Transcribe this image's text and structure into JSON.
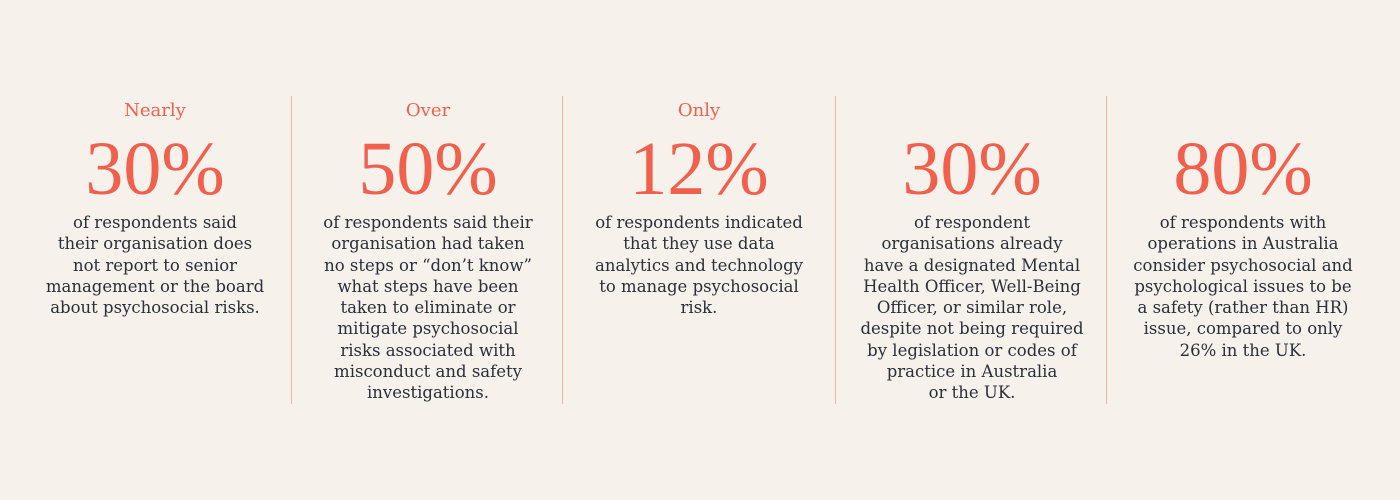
{
  "stats": [
    {
      "prefix": "Nearly",
      "figure": "30%",
      "lines": [
        "of respondents said",
        "their organisation does",
        "not report to senior",
        "management or the board",
        "about psychosocial risks."
      ]
    },
    {
      "prefix": "Over",
      "figure": "50%",
      "lines": [
        "of respondents said their",
        "organisation had taken",
        "no steps or “don’t know”",
        "what steps have been",
        "taken to eliminate or",
        "mitigate psychosocial",
        "risks associated with",
        "misconduct and safety",
        "investigations."
      ]
    },
    {
      "prefix": "Only",
      "figure": "12%",
      "lines": [
        "of respondents indicated",
        "that they use data",
        "analytics and technology",
        "to manage psychosocial",
        "risk."
      ]
    },
    {
      "figure": "30%",
      "lines": [
        "of respondent",
        "organisations already",
        "have a designated Mental",
        "Health Officer, Well-Being",
        "Officer, or similar role,",
        "despite not being required",
        "by legislation or codes of",
        "practice in Australia",
        "or the UK."
      ]
    },
    {
      "figure": "80%",
      "lines": [
        "of respondents with",
        "operations in Australia",
        "consider psychosocial and",
        "psychological issues to be",
        "a safety (rather than HR)",
        "issue, compared to only",
        "26% in the UK."
      ]
    }
  ]
}
